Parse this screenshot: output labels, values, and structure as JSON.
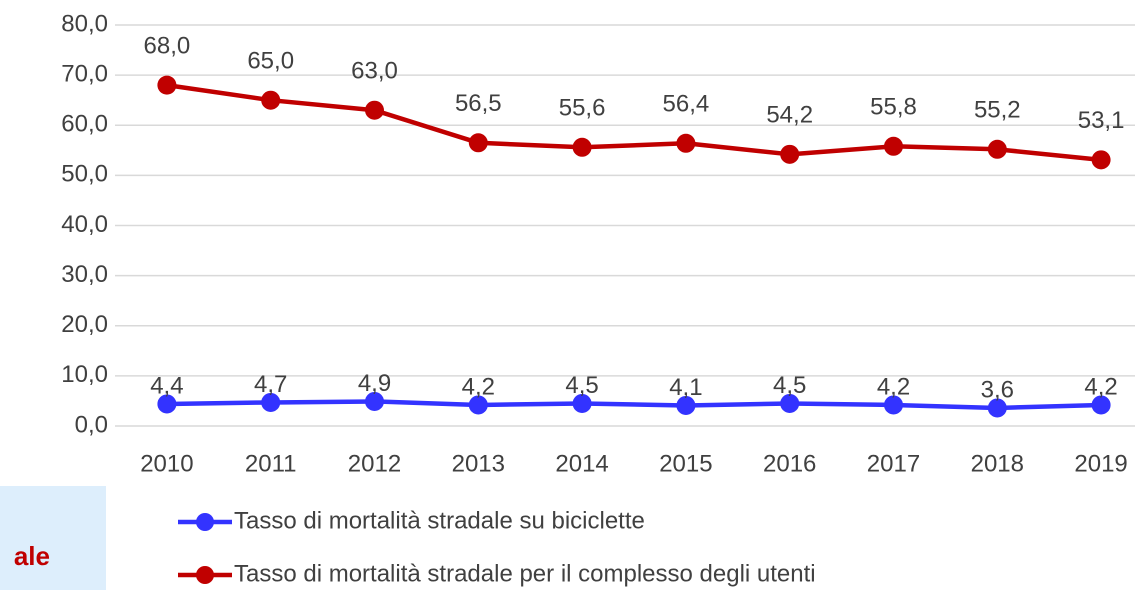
{
  "chart_data": {
    "type": "line",
    "categories": [
      "2010",
      "2011",
      "2012",
      "2013",
      "2014",
      "2015",
      "2016",
      "2017",
      "2018",
      "2019"
    ],
    "series": [
      {
        "name": "Tasso di mortalità stradale su biciclette",
        "color": "#3333ff",
        "values": [
          4.4,
          4.7,
          4.9,
          4.2,
          4.5,
          4.1,
          4.5,
          4.2,
          3.6,
          4.2
        ],
        "value_labels": [
          "4,4",
          "4,7",
          "4,9",
          "4,2",
          "4,5",
          "4,1",
          "4,5",
          "4,2",
          "3,6",
          "4,2"
        ]
      },
      {
        "name": "Tasso di mortalità stradale per il complesso degli utenti",
        "color": "#c00000",
        "values": [
          68.0,
          65.0,
          63.0,
          56.5,
          55.6,
          56.4,
          54.2,
          55.8,
          55.2,
          53.1
        ],
        "value_labels": [
          "68,0",
          "65,0",
          "63,0",
          "56,5",
          "55,6",
          "56,4",
          "54,2",
          "55,8",
          "55,2",
          "53,1"
        ]
      }
    ],
    "ylim": [
      0,
      80
    ],
    "yticks": [
      {
        "value": 0,
        "label": "0,0"
      },
      {
        "value": 10,
        "label": "10,0"
      },
      {
        "value": 20,
        "label": "20,0"
      },
      {
        "value": 30,
        "label": "30,0"
      },
      {
        "value": 40,
        "label": "40,0"
      },
      {
        "value": 50,
        "label": "50,0"
      },
      {
        "value": 60,
        "label": "60,0"
      },
      {
        "value": 70,
        "label": "70,0"
      },
      {
        "value": 80,
        "label": "80,0"
      }
    ],
    "grid": true,
    "legend": "bottom"
  },
  "note_box": {
    "text": "ale"
  }
}
